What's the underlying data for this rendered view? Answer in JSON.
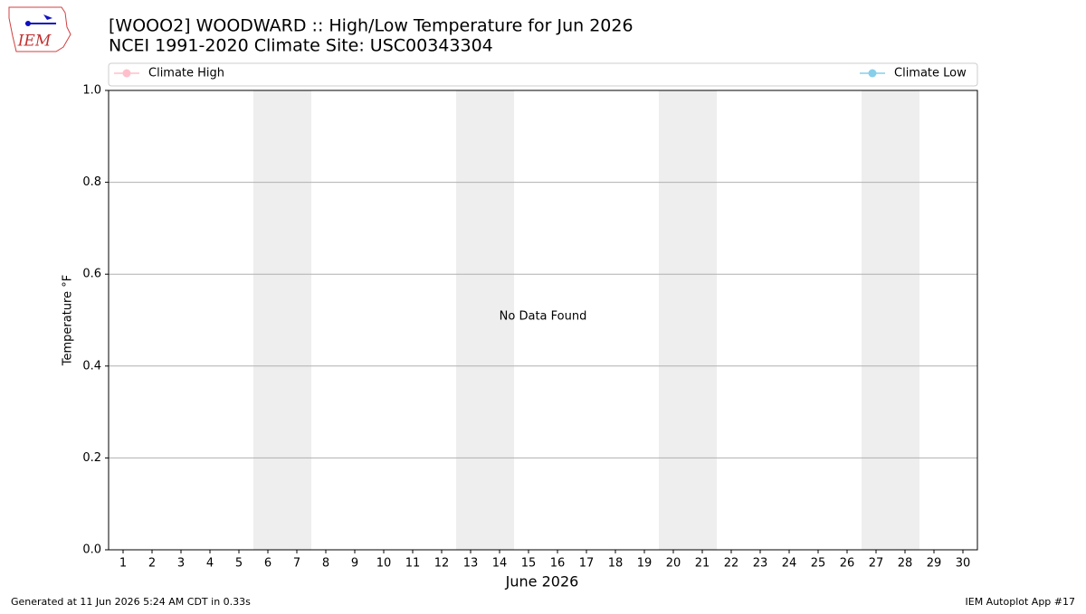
{
  "logo_text": "IEM",
  "footer_left": "Generated at 11 Jun 2026 5:24 AM CDT in 0.33s",
  "footer_right": "IEM Autoplot App #17",
  "chart_data": {
    "type": "line",
    "title": "[WOOO2] WOODWARD :: High/Low Temperature for Jun 2026",
    "subtitle": "NCEI 1991-2020 Climate Site: USC00343304",
    "xlabel": "June 2026",
    "ylabel": "Temperature °F",
    "annotation": "No Data Found",
    "series": [
      {
        "name": "Climate High",
        "color": "#ffc0cb",
        "values": []
      },
      {
        "name": "Climate Low",
        "color": "#87ceeb",
        "values": []
      }
    ],
    "xlim": [
      0.5,
      30.5
    ],
    "xticks": [
      1,
      2,
      3,
      4,
      5,
      6,
      7,
      8,
      9,
      10,
      11,
      12,
      13,
      14,
      15,
      16,
      17,
      18,
      19,
      20,
      21,
      22,
      23,
      24,
      25,
      26,
      27,
      28,
      29,
      30
    ],
    "ylim": [
      0,
      1
    ],
    "yticks": [
      {
        "value": 0,
        "label": "0.0"
      },
      {
        "value": 0.2,
        "label": "0.2"
      },
      {
        "value": 0.4,
        "label": "0.4"
      },
      {
        "value": 0.6,
        "label": "0.6"
      },
      {
        "value": 0.8,
        "label": "0.8"
      },
      {
        "value": 1,
        "label": "1.0"
      }
    ],
    "shaded_days": [
      6,
      7,
      13,
      14,
      20,
      21,
      27,
      28
    ],
    "grid": true
  }
}
